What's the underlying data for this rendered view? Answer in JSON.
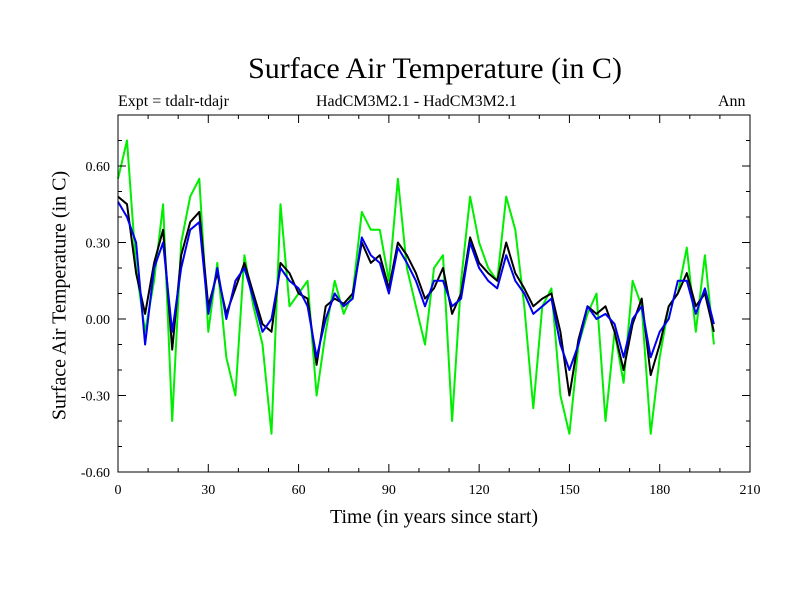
{
  "chart_data": {
    "type": "line",
    "title": "Surface Air Temperature (in C)",
    "subtitle_left": "Expt = tdalr-tdajr",
    "subtitle_center": "HadCM3M2.1 - HadCM3M2.1",
    "subtitle_right": "Ann",
    "xlabel": "Time (in years since start)",
    "ylabel": "Surface Air Temperature (in C)",
    "xlim": [
      0,
      210
    ],
    "ylim": [
      -0.6,
      0.8
    ],
    "xticks": [
      0,
      30,
      60,
      90,
      120,
      150,
      180,
      210
    ],
    "xtick_labels": [
      "0",
      "30",
      "60",
      "90",
      "120",
      "150",
      "180",
      "210"
    ],
    "yticks": [
      -0.6,
      -0.3,
      0.0,
      0.3,
      0.6
    ],
    "ytick_labels": [
      "-0.60",
      "-0.30",
      "0.00",
      "0.30",
      "0.60"
    ],
    "x": [
      0,
      3,
      6,
      9,
      12,
      15,
      18,
      21,
      24,
      27,
      30,
      33,
      36,
      39,
      42,
      45,
      48,
      51,
      54,
      57,
      60,
      63,
      66,
      69,
      72,
      75,
      78,
      81,
      84,
      87,
      90,
      93,
      96,
      99,
      102,
      105,
      108,
      111,
      114,
      117,
      120,
      123,
      126,
      129,
      132,
      135,
      138,
      141,
      144,
      147,
      150,
      153,
      156,
      159,
      162,
      165,
      168,
      171,
      174,
      177,
      180,
      183,
      186,
      189,
      192,
      195,
      198
    ],
    "series": [
      {
        "name": "black",
        "color": "#000000",
        "values": [
          0.48,
          0.45,
          0.18,
          0.02,
          0.22,
          0.35,
          -0.12,
          0.25,
          0.38,
          0.42,
          0.05,
          0.18,
          0.02,
          0.12,
          0.22,
          0.1,
          -0.02,
          -0.05,
          0.22,
          0.18,
          0.1,
          0.08,
          -0.18,
          0.05,
          0.08,
          0.06,
          0.1,
          0.3,
          0.22,
          0.25,
          0.12,
          0.3,
          0.25,
          0.18,
          0.08,
          0.12,
          0.2,
          0.02,
          0.1,
          0.32,
          0.22,
          0.18,
          0.15,
          0.3,
          0.18,
          0.12,
          0.05,
          0.08,
          0.1,
          -0.05,
          -0.3,
          -0.08,
          0.05,
          0.02,
          0.05,
          -0.05,
          -0.2,
          -0.02,
          0.08,
          -0.22,
          -0.1,
          0.05,
          0.1,
          0.18,
          0.05,
          0.1,
          -0.05
        ]
      },
      {
        "name": "green",
        "color": "#00ee00",
        "values": [
          0.55,
          0.7,
          0.2,
          -0.05,
          0.15,
          0.45,
          -0.4,
          0.3,
          0.48,
          0.55,
          -0.05,
          0.22,
          -0.15,
          -0.3,
          0.25,
          0.05,
          -0.1,
          -0.45,
          0.45,
          0.05,
          0.1,
          0.15,
          -0.3,
          -0.05,
          0.15,
          0.02,
          0.1,
          0.42,
          0.35,
          0.35,
          0.15,
          0.55,
          0.2,
          0.05,
          -0.1,
          0.2,
          0.25,
          -0.4,
          0.15,
          0.48,
          0.3,
          0.2,
          0.15,
          0.48,
          0.35,
          0.05,
          -0.35,
          0.05,
          0.12,
          -0.3,
          -0.45,
          -0.1,
          0.02,
          0.1,
          -0.4,
          -0.05,
          -0.25,
          0.15,
          0.05,
          -0.45,
          -0.15,
          0.05,
          0.1,
          0.28,
          -0.05,
          0.25,
          -0.1
        ]
      },
      {
        "name": "blue",
        "color": "#0000ee",
        "values": [
          0.46,
          0.4,
          0.3,
          -0.1,
          0.2,
          0.3,
          -0.05,
          0.2,
          0.35,
          0.38,
          0.02,
          0.2,
          0.0,
          0.15,
          0.2,
          0.08,
          -0.05,
          0.0,
          0.2,
          0.15,
          0.12,
          0.05,
          -0.15,
          0.0,
          0.1,
          0.05,
          0.08,
          0.32,
          0.25,
          0.22,
          0.1,
          0.28,
          0.22,
          0.15,
          0.05,
          0.15,
          0.15,
          0.05,
          0.08,
          0.3,
          0.2,
          0.15,
          0.12,
          0.25,
          0.15,
          0.1,
          0.02,
          0.05,
          0.08,
          -0.1,
          -0.2,
          -0.1,
          0.05,
          0.0,
          0.02,
          -0.02,
          -0.15,
          0.0,
          0.05,
          -0.15,
          -0.05,
          0.0,
          0.15,
          0.15,
          0.02,
          0.12,
          -0.02
        ]
      }
    ]
  }
}
